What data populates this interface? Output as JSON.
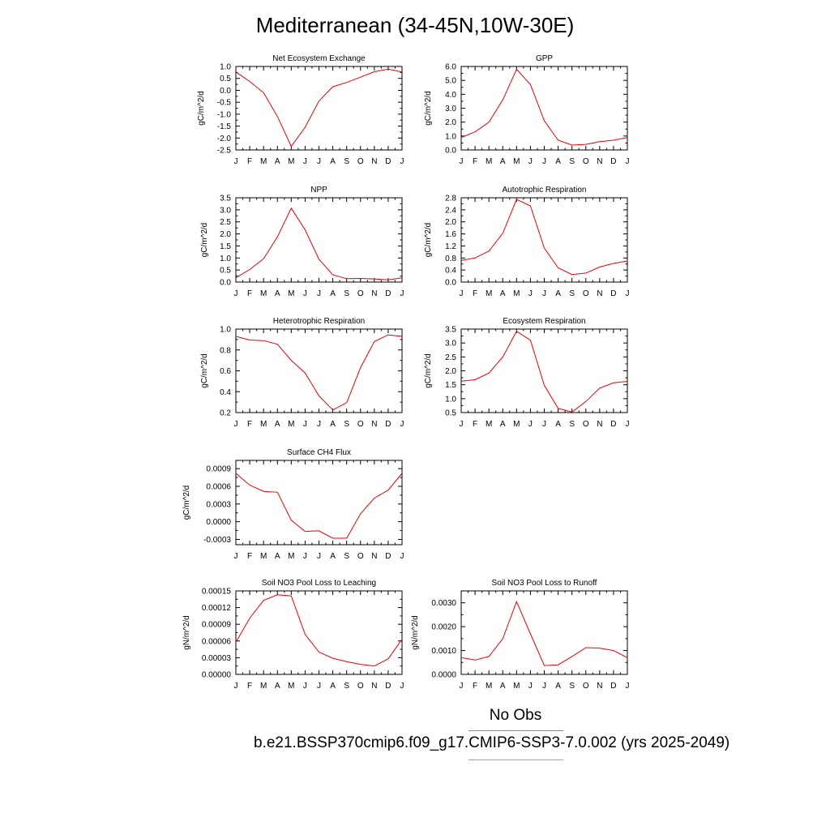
{
  "figure": {
    "title": "Mediterranean (34-45N,10W-30E)"
  },
  "legend": {
    "obs_label": "No Obs",
    "case_label": "b.e21.BSSP370cmip6.f09_g17.CMIP6-SSP3-7.0.002 (yrs 2025-2049)",
    "obs_line_color": "#7b7bf0",
    "case_line_color": "#f08080"
  },
  "colors": {
    "series": "#e8000b",
    "axis": "#000000"
  },
  "chart_data": [
    {
      "type": "line",
      "title": "Net Ecosystem Exchange",
      "ylabel": "gC/m^2/d",
      "categories": [
        "J",
        "F",
        "M",
        "A",
        "M",
        "J",
        "J",
        "A",
        "S",
        "O",
        "N",
        "D",
        "J"
      ],
      "ylim": [
        -2.5,
        1.0
      ],
      "yticks": [
        "1.0",
        "0.5",
        "0.0",
        "-0.5",
        "-1.0",
        "-1.5",
        "-2.0",
        "-2.5"
      ],
      "series": [
        {
          "values": [
            0.77,
            0.37,
            -0.1,
            -1.1,
            -2.35,
            -1.55,
            -0.45,
            0.15,
            0.33,
            0.55,
            0.78,
            0.89,
            0.77
          ]
        }
      ]
    },
    {
      "type": "line",
      "title": "GPP",
      "ylabel": "gC/m^2/d",
      "categories": [
        "J",
        "F",
        "M",
        "A",
        "M",
        "J",
        "J",
        "A",
        "S",
        "O",
        "N",
        "D",
        "J"
      ],
      "ylim": [
        0.0,
        6.0
      ],
      "yticks": [
        "6.0",
        "5.0",
        "4.0",
        "3.0",
        "2.0",
        "1.0",
        "0.0"
      ],
      "series": [
        {
          "values": [
            0.9,
            1.3,
            2.0,
            3.6,
            5.8,
            4.7,
            2.1,
            0.7,
            0.35,
            0.4,
            0.6,
            0.7,
            0.9
          ]
        }
      ]
    },
    {
      "type": "line",
      "title": "NPP",
      "ylabel": "gC/m^2/d",
      "categories": [
        "J",
        "F",
        "M",
        "A",
        "M",
        "J",
        "J",
        "A",
        "S",
        "O",
        "N",
        "D",
        "J"
      ],
      "ylim": [
        0.0,
        3.5
      ],
      "yticks": [
        "3.5",
        "3.0",
        "2.5",
        "2.0",
        "1.5",
        "1.0",
        "0.5",
        "0.0"
      ],
      "series": [
        {
          "values": [
            0.18,
            0.52,
            0.97,
            1.88,
            3.07,
            2.17,
            0.95,
            0.3,
            0.14,
            0.15,
            0.13,
            0.09,
            0.18
          ]
        }
      ]
    },
    {
      "type": "line",
      "title": "Autotrophic Respiration",
      "ylabel": "gC/m^2/d",
      "categories": [
        "J",
        "F",
        "M",
        "A",
        "M",
        "J",
        "J",
        "A",
        "S",
        "O",
        "N",
        "D",
        "J"
      ],
      "ylim": [
        0.0,
        2.8
      ],
      "yticks": [
        "2.8",
        "2.4",
        "2.0",
        "1.6",
        "1.2",
        "0.8",
        "0.4",
        "0.0"
      ],
      "series": [
        {
          "values": [
            0.72,
            0.8,
            1.03,
            1.62,
            2.75,
            2.53,
            1.13,
            0.47,
            0.25,
            0.3,
            0.5,
            0.62,
            0.7
          ]
        }
      ]
    },
    {
      "type": "line",
      "title": "Heterotrophic Respiration",
      "ylabel": "gC/m^2/d",
      "categories": [
        "J",
        "F",
        "M",
        "A",
        "M",
        "J",
        "J",
        "A",
        "S",
        "O",
        "N",
        "D",
        "J"
      ],
      "ylim": [
        0.2,
        1.0
      ],
      "yticks": [
        "1.0",
        "0.8",
        "0.6",
        "0.4",
        "0.2"
      ],
      "series": [
        {
          "values": [
            0.93,
            0.895,
            0.89,
            0.855,
            0.7,
            0.58,
            0.36,
            0.225,
            0.295,
            0.63,
            0.88,
            0.945,
            0.93
          ]
        }
      ]
    },
    {
      "type": "line",
      "title": "Ecosystem Respiration",
      "ylabel": "gC/m^2/d",
      "categories": [
        "J",
        "F",
        "M",
        "A",
        "M",
        "J",
        "J",
        "A",
        "S",
        "O",
        "N",
        "D",
        "J"
      ],
      "ylim": [
        0.5,
        3.5
      ],
      "yticks": [
        "3.5",
        "3.0",
        "2.5",
        "2.0",
        "1.5",
        "1.0",
        "0.5"
      ],
      "series": [
        {
          "values": [
            1.63,
            1.68,
            1.92,
            2.5,
            3.42,
            3.1,
            1.48,
            0.65,
            0.52,
            0.9,
            1.38,
            1.57,
            1.62
          ]
        }
      ]
    },
    {
      "type": "line",
      "title": "Surface CH4 Flux",
      "ylabel": "gC/m^2/d",
      "categories": [
        "J",
        "F",
        "M",
        "A",
        "M",
        "J",
        "J",
        "A",
        "S",
        "O",
        "N",
        "D",
        "J"
      ],
      "ylim": [
        -0.00039,
        0.00104
      ],
      "yticks": [
        "0.0009",
        "0.0006",
        "0.0003",
        "0.0000",
        "-0.0003"
      ],
      "ytick_values": [
        0.0009,
        0.0006,
        0.0003,
        0.0,
        -0.0003
      ],
      "series": [
        {
          "values": [
            0.00082,
            0.00062,
            0.000515,
            0.0005,
            2.5e-05,
            -0.000165,
            -0.000155,
            -0.00028,
            -0.00028,
            0.000135,
            0.0004,
            0.000535,
            0.00082
          ]
        }
      ]
    },
    {
      "type": "line",
      "title": "Soil NO3 Pool Loss to Leaching",
      "ylabel": "gN/m^2/d",
      "categories": [
        "J",
        "F",
        "M",
        "A",
        "M",
        "J",
        "J",
        "A",
        "S",
        "O",
        "N",
        "D",
        "J"
      ],
      "ylim": [
        0.0,
        0.00015
      ],
      "yticks": [
        "0.00015",
        "0.00012",
        "0.00009",
        "0.00006",
        "0.00003",
        "0.00000"
      ],
      "series": [
        {
          "values": [
            5.8e-05,
            0.000101,
            0.000133,
            0.000143,
            0.000141,
            7.2e-05,
            4e-05,
            2.9e-05,
            2.3e-05,
            1.8e-05,
            1.5e-05,
            2.8e-05,
            6.3e-05
          ]
        }
      ]
    },
    {
      "type": "line",
      "title": "Soil NO3 Pool Loss to Runoff",
      "ylabel": "gN/m^2/d",
      "categories": [
        "J",
        "F",
        "M",
        "A",
        "M",
        "J",
        "J",
        "A",
        "S",
        "O",
        "N",
        "D",
        "J"
      ],
      "ylim": [
        0.0,
        0.0035
      ],
      "yticks": [
        "0.0030",
        "0.0020",
        "0.0010",
        "0.0000"
      ],
      "ytick_values": [
        0.003,
        0.002,
        0.001,
        0.0
      ],
      "series": [
        {
          "values": [
            0.0007,
            0.0006,
            0.00075,
            0.0015,
            0.00305,
            0.0017,
            0.00037,
            0.0004,
            0.00075,
            0.00112,
            0.0011,
            0.001,
            0.0007
          ]
        }
      ]
    }
  ]
}
